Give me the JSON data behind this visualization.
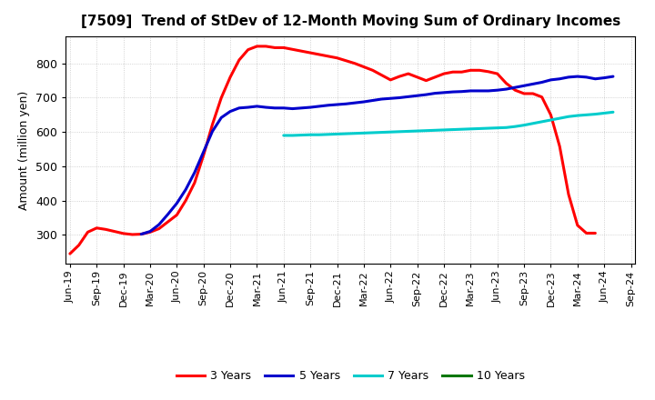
{
  "title": "[7509]  Trend of StDev of 12-Month Moving Sum of Ordinary Incomes",
  "ylabel": "Amount (million yen)",
  "background_color": "#ffffff",
  "grid_color": "#b0b0b0",
  "series": {
    "3 Years": {
      "color": "#ff0000",
      "x": [
        0,
        1,
        2,
        3,
        4,
        5,
        6,
        7,
        8,
        9,
        10,
        11,
        12,
        13,
        14,
        15,
        16,
        17,
        18,
        19,
        20,
        21,
        22,
        23,
        24,
        25,
        26,
        27,
        28,
        29,
        30,
        31,
        32,
        33,
        34,
        35,
        36,
        37,
        38,
        39,
        40,
        41,
        42,
        43,
        44,
        45,
        46,
        47,
        48,
        49,
        50,
        51,
        52,
        53,
        54,
        55,
        56,
        57,
        58,
        59
      ],
      "y": [
        245,
        270,
        308,
        320,
        316,
        310,
        304,
        301,
        302,
        308,
        318,
        338,
        358,
        400,
        452,
        532,
        622,
        700,
        760,
        810,
        840,
        850,
        850,
        846,
        846,
        841,
        836,
        831,
        826,
        821,
        816,
        808,
        800,
        790,
        780,
        766,
        752,
        762,
        770,
        760,
        750,
        760,
        770,
        775,
        775,
        780,
        780,
        776,
        770,
        742,
        722,
        712,
        712,
        702,
        650,
        558,
        418,
        328,
        305,
        305
      ]
    },
    "5 Years": {
      "color": "#0000cc",
      "x": [
        8,
        9,
        10,
        11,
        12,
        13,
        14,
        15,
        16,
        17,
        18,
        19,
        20,
        21,
        22,
        23,
        24,
        25,
        26,
        27,
        28,
        29,
        30,
        31,
        32,
        33,
        34,
        35,
        36,
        37,
        38,
        39,
        40,
        41,
        42,
        43,
        44,
        45,
        46,
        47,
        48,
        49,
        50,
        51,
        52,
        53,
        54,
        55,
        56,
        57,
        58,
        59,
        60,
        61
      ],
      "y": [
        302,
        310,
        330,
        360,
        392,
        432,
        482,
        542,
        602,
        642,
        660,
        670,
        672,
        675,
        672,
        670,
        670,
        668,
        670,
        672,
        675,
        678,
        680,
        682,
        685,
        688,
        692,
        696,
        698,
        700,
        703,
        706,
        709,
        713,
        715,
        717,
        718,
        720,
        720,
        720,
        722,
        725,
        730,
        735,
        740,
        745,
        752,
        755,
        760,
        762,
        760,
        755,
        758,
        762
      ]
    },
    "7 Years": {
      "color": "#00cccc",
      "x": [
        24,
        25,
        26,
        27,
        28,
        29,
        30,
        31,
        32,
        33,
        34,
        35,
        36,
        37,
        38,
        39,
        40,
        41,
        42,
        43,
        44,
        45,
        46,
        47,
        48,
        49,
        50,
        51,
        52,
        53,
        54,
        55,
        56,
        57,
        58,
        59,
        60,
        61
      ],
      "y": [
        590,
        590,
        591,
        592,
        592,
        593,
        594,
        595,
        596,
        597,
        598,
        599,
        600,
        601,
        602,
        603,
        604,
        605,
        606,
        607,
        608,
        609,
        610,
        611,
        612,
        613,
        616,
        620,
        625,
        630,
        635,
        640,
        645,
        648,
        650,
        652,
        655,
        658
      ]
    },
    "10 Years": {
      "color": "#007700",
      "x": [],
      "y": []
    }
  },
  "x_tick_labels": [
    "Jun-19",
    "Sep-19",
    "Dec-19",
    "Mar-20",
    "Jun-20",
    "Sep-20",
    "Dec-20",
    "Mar-21",
    "Jun-21",
    "Sep-21",
    "Dec-21",
    "Mar-22",
    "Jun-22",
    "Sep-22",
    "Dec-22",
    "Mar-23",
    "Jun-23",
    "Sep-23",
    "Dec-23",
    "Mar-24",
    "Jun-24",
    "Sep-24"
  ],
  "x_tick_positions": [
    0,
    3,
    6,
    9,
    12,
    15,
    18,
    21,
    24,
    27,
    30,
    33,
    36,
    39,
    42,
    45,
    48,
    51,
    54,
    57,
    60,
    63
  ],
  "ylim": [
    215,
    880
  ],
  "yticks": [
    300,
    400,
    500,
    600,
    700,
    800
  ],
  "xlim": [
    -0.5,
    63.5
  ],
  "linewidth": 2.2,
  "title_fontsize": 11,
  "tick_fontsize": 8,
  "ylabel_fontsize": 9
}
